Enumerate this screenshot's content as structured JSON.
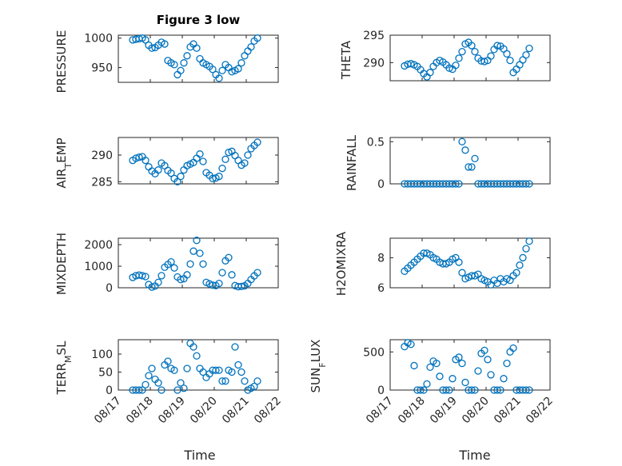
{
  "figure_title": "Figure 3 low",
  "x_axis_label": "Time",
  "x_tick_labels": [
    "08/17",
    "08/18",
    "08/19",
    "08/20",
    "08/21",
    "08/22"
  ],
  "colors": {
    "marker": "#0072bd",
    "axes": "#262626",
    "grid": "#d4d4d4"
  },
  "chart_data": [
    {
      "type": "scatter",
      "ylabel": "PRESSURE",
      "title": "Figure 3 low",
      "xlabel": "",
      "xlim": [
        0,
        5
      ],
      "ylim": [
        925,
        1005
      ],
      "yticks": [
        950,
        1000
      ],
      "grid": true,
      "marker": "open-circle",
      "x": [
        0.45,
        0.55,
        0.65,
        0.75,
        0.85,
        0.95,
        1.05,
        1.15,
        1.25,
        1.35,
        1.45,
        1.55,
        1.65,
        1.75,
        1.85,
        1.95,
        2.05,
        2.15,
        2.25,
        2.35,
        2.45,
        2.55,
        2.65,
        2.75,
        2.85,
        2.95,
        3.05,
        3.15,
        3.25,
        3.35,
        3.45,
        3.55,
        3.65,
        3.75,
        3.85,
        3.95,
        4.05,
        4.15,
        4.25,
        4.35
      ],
      "y": [
        997,
        998,
        999,
        1000,
        997,
        988,
        983,
        984,
        988,
        993,
        990,
        962,
        958,
        955,
        938,
        945,
        958,
        970,
        985,
        990,
        983,
        965,
        958,
        955,
        952,
        947,
        938,
        932,
        945,
        955,
        950,
        943,
        945,
        948,
        958,
        970,
        978,
        985,
        995,
        1000
      ]
    },
    {
      "type": "scatter",
      "ylabel": "THETA",
      "xlabel": "",
      "xlim": [
        0,
        5
      ],
      "ylim": [
        286.7,
        295
      ],
      "yticks": [
        290,
        295
      ],
      "grid": true,
      "marker": "open-circle",
      "x": [
        0.45,
        0.55,
        0.65,
        0.75,
        0.85,
        0.95,
        1.05,
        1.15,
        1.25,
        1.35,
        1.45,
        1.55,
        1.65,
        1.75,
        1.85,
        1.95,
        2.05,
        2.15,
        2.25,
        2.35,
        2.45,
        2.55,
        2.65,
        2.75,
        2.85,
        2.95,
        3.05,
        3.15,
        3.25,
        3.35,
        3.45,
        3.55,
        3.65,
        3.75,
        3.85,
        3.95,
        4.05,
        4.15,
        4.25,
        4.35
      ],
      "y": [
        289.4,
        289.7,
        289.8,
        289.6,
        289.3,
        288.7,
        288.0,
        287.4,
        288.2,
        289.3,
        290.0,
        290.4,
        290.1,
        289.6,
        289.0,
        288.8,
        289.5,
        290.8,
        292.0,
        293.4,
        293.7,
        293.1,
        292.0,
        290.8,
        290.3,
        290.2,
        290.4,
        291.2,
        292.4,
        293.1,
        293.0,
        292.5,
        291.6,
        290.4,
        288.2,
        288.8,
        289.6,
        290.5,
        291.4,
        292.6
      ]
    },
    {
      "type": "scatter",
      "ylabel": "AIR_TEMP",
      "xlabel": "",
      "xlim": [
        0,
        5
      ],
      "ylim": [
        284.6,
        293.3
      ],
      "yticks": [
        285,
        290
      ],
      "grid": true,
      "marker": "open-circle",
      "x": [
        0.45,
        0.55,
        0.65,
        0.75,
        0.85,
        0.95,
        1.05,
        1.15,
        1.25,
        1.35,
        1.45,
        1.55,
        1.65,
        1.75,
        1.85,
        1.95,
        2.05,
        2.15,
        2.25,
        2.35,
        2.45,
        2.55,
        2.65,
        2.75,
        2.85,
        2.95,
        3.05,
        3.15,
        3.25,
        3.35,
        3.45,
        3.55,
        3.65,
        3.75,
        3.85,
        3.95,
        4.05,
        4.15,
        4.25,
        4.35
      ],
      "y": [
        289.0,
        289.4,
        289.6,
        289.7,
        289.0,
        287.8,
        287.0,
        286.5,
        287.2,
        288.5,
        288.0,
        287.1,
        286.6,
        285.6,
        285.0,
        286.0,
        287.2,
        288.0,
        288.3,
        288.6,
        289.4,
        290.2,
        288.8,
        286.7,
        286.2,
        285.6,
        285.7,
        286.0,
        287.5,
        289.2,
        290.5,
        290.7,
        289.9,
        289.0,
        288.1,
        288.5,
        290.0,
        291.2,
        291.8,
        292.4
      ]
    },
    {
      "type": "scatter",
      "ylabel": "RAINFALL",
      "xlabel": "",
      "xlim": [
        0,
        5
      ],
      "ylim": [
        0,
        0.55
      ],
      "yticks": [
        0,
        0.5
      ],
      "grid": true,
      "marker": "open-circle",
      "x": [
        0.45,
        0.55,
        0.65,
        0.75,
        0.85,
        0.95,
        1.05,
        1.15,
        1.25,
        1.35,
        1.45,
        1.55,
        1.65,
        1.75,
        1.85,
        1.95,
        2.05,
        2.15,
        2.25,
        2.35,
        2.45,
        2.55,
        2.65,
        2.75,
        2.85,
        2.95,
        3.05,
        3.15,
        3.25,
        3.35,
        3.45,
        3.55,
        3.65,
        3.75,
        3.85,
        3.95,
        4.05,
        4.15,
        4.25,
        4.35
      ],
      "y": [
        0,
        0,
        0,
        0,
        0,
        0,
        0,
        0,
        0,
        0,
        0,
        0,
        0,
        0,
        0,
        0,
        0,
        0,
        0.5,
        0.4,
        0.2,
        0.2,
        0.3,
        0,
        0,
        0,
        0,
        0,
        0,
        0,
        0,
        0,
        0,
        0,
        0,
        0,
        0,
        0,
        0,
        0
      ]
    },
    {
      "type": "scatter",
      "ylabel": "MIXDEPTH",
      "xlabel": "",
      "xlim": [
        0,
        5
      ],
      "ylim": [
        0,
        2300
      ],
      "yticks": [
        0,
        1000,
        2000
      ],
      "grid": true,
      "marker": "open-circle",
      "x": [
        0.45,
        0.55,
        0.65,
        0.75,
        0.85,
        0.95,
        1.05,
        1.15,
        1.25,
        1.35,
        1.45,
        1.55,
        1.65,
        1.75,
        1.85,
        1.95,
        2.05,
        2.15,
        2.25,
        2.35,
        2.45,
        2.55,
        2.65,
        2.75,
        2.85,
        2.95,
        3.05,
        3.15,
        3.25,
        3.35,
        3.45,
        3.55,
        3.65,
        3.75,
        3.85,
        3.95,
        4.05,
        4.15,
        4.25,
        4.35
      ],
      "y": [
        480,
        560,
        590,
        560,
        520,
        150,
        30,
        80,
        250,
        560,
        950,
        1080,
        1200,
        920,
        500,
        380,
        420,
        600,
        1100,
        1700,
        2200,
        1600,
        1100,
        250,
        180,
        120,
        100,
        200,
        700,
        1250,
        1400,
        600,
        100,
        50,
        60,
        90,
        200,
        380,
        550,
        700
      ]
    },
    {
      "type": "scatter",
      "ylabel": "H2OMIXRA",
      "xlabel": "",
      "xlim": [
        0,
        5
      ],
      "ylim": [
        6,
        9.3
      ],
      "yticks": [
        6,
        8
      ],
      "grid": true,
      "marker": "open-circle",
      "x": [
        0.45,
        0.55,
        0.65,
        0.75,
        0.85,
        0.95,
        1.05,
        1.15,
        1.25,
        1.35,
        1.45,
        1.55,
        1.65,
        1.75,
        1.85,
        1.95,
        2.05,
        2.15,
        2.25,
        2.35,
        2.45,
        2.55,
        2.65,
        2.75,
        2.85,
        2.95,
        3.05,
        3.15,
        3.25,
        3.35,
        3.45,
        3.55,
        3.65,
        3.75,
        3.85,
        3.95,
        4.05,
        4.15,
        4.25,
        4.35
      ],
      "y": [
        7.1,
        7.3,
        7.5,
        7.7,
        7.9,
        8.1,
        8.3,
        8.3,
        8.2,
        8.0,
        7.9,
        7.7,
        7.6,
        7.6,
        7.7,
        7.9,
        8.0,
        7.7,
        7.0,
        6.6,
        6.7,
        6.8,
        6.8,
        6.9,
        6.6,
        6.5,
        6.4,
        6.2,
        6.5,
        6.3,
        6.6,
        6.4,
        6.6,
        6.5,
        6.8,
        7.0,
        7.5,
        8.0,
        8.6,
        9.1
      ]
    },
    {
      "type": "scatter",
      "ylabel": "TERR_MSL",
      "xlabel": "",
      "xlim": [
        0,
        5
      ],
      "ylim": [
        0,
        140
      ],
      "yticks": [
        0,
        50,
        100
      ],
      "grid": true,
      "marker": "open-circle",
      "x": [
        0.45,
        0.55,
        0.65,
        0.75,
        0.85,
        0.95,
        1.05,
        1.15,
        1.25,
        1.35,
        1.45,
        1.55,
        1.65,
        1.75,
        1.85,
        1.95,
        2.05,
        2.15,
        2.25,
        2.35,
        2.45,
        2.55,
        2.65,
        2.75,
        2.85,
        2.95,
        3.05,
        3.15,
        3.25,
        3.35,
        3.45,
        3.55,
        3.65,
        3.75,
        3.85,
        3.95,
        4.05,
        4.15,
        4.25,
        4.35
      ],
      "y": [
        0,
        0,
        0,
        0,
        15,
        40,
        60,
        30,
        20,
        0,
        70,
        80,
        60,
        55,
        0,
        20,
        5,
        60,
        130,
        120,
        95,
        60,
        50,
        35,
        45,
        55,
        55,
        55,
        25,
        25,
        55,
        50,
        120,
        70,
        50,
        25,
        0,
        5,
        10,
        25
      ]
    },
    {
      "type": "scatter",
      "ylabel": "SUN_FLUX",
      "xlabel": "",
      "xlim": [
        0,
        5
      ],
      "ylim": [
        0,
        660
      ],
      "yticks": [
        0,
        500
      ],
      "grid": true,
      "marker": "open-circle",
      "x": [
        0.45,
        0.55,
        0.65,
        0.75,
        0.85,
        0.95,
        1.05,
        1.15,
        1.25,
        1.35,
        1.45,
        1.55,
        1.65,
        1.75,
        1.85,
        1.95,
        2.05,
        2.15,
        2.25,
        2.35,
        2.45,
        2.55,
        2.65,
        2.75,
        2.85,
        2.95,
        3.05,
        3.15,
        3.25,
        3.35,
        3.45,
        3.55,
        3.65,
        3.75,
        3.85,
        3.95,
        4.05,
        4.15,
        4.25,
        4.35
      ],
      "y": [
        570,
        620,
        600,
        320,
        0,
        0,
        0,
        80,
        300,
        380,
        350,
        180,
        0,
        0,
        0,
        150,
        400,
        430,
        350,
        100,
        0,
        0,
        0,
        250,
        480,
        520,
        400,
        200,
        0,
        0,
        0,
        150,
        350,
        500,
        550,
        0,
        0,
        0,
        0,
        0
      ]
    }
  ]
}
